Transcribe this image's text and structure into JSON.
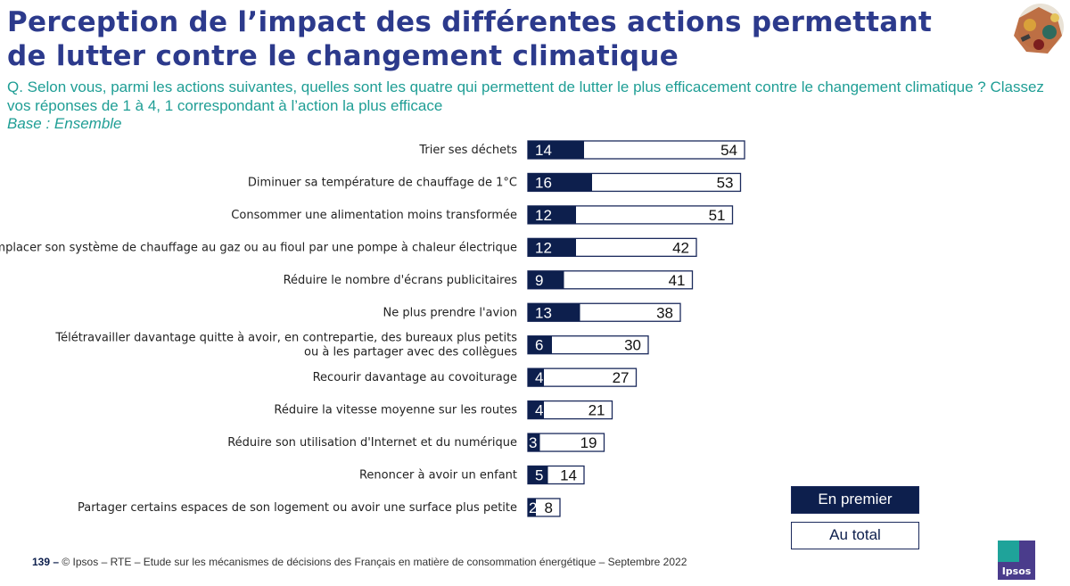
{
  "title": "Perception de l’impact des différentes actions permettant de lutter contre le changement climatique",
  "question": "Q. Selon vous, parmi les actions suivantes, quelles sont les quatre qui permettent de lutter le plus efficacement contre le changement climatique ? Classez vos réponses de 1 à 4, 1 correspondant à l’action la plus efficace",
  "base": "Base : Ensemble",
  "footer": {
    "page": "139 –",
    "text": "© Ipsos – RTE – Etude sur les mécanismes de décisions des Français en matière de consommation énergétique – Septembre 2022"
  },
  "logo_text": "Ipsos",
  "colors": {
    "title": "#2c3a8c",
    "subtitle": "#1f9e95",
    "first": "#0d1f4d",
    "total_fill": "#ffffff",
    "border": "#1b2a5c"
  },
  "chart_data": {
    "type": "bar",
    "orientation": "horizontal",
    "overlay": true,
    "categories": [
      [
        "Trier ses déchets"
      ],
      [
        "Diminuer sa température de chauffage de 1°C"
      ],
      [
        "Consommer une alimentation moins transformée"
      ],
      [
        "Remplacer son système de chauffage au gaz ou au fioul par une pompe à chaleur électrique"
      ],
      [
        "Réduire le nombre d'écrans publicitaires"
      ],
      [
        "Ne plus prendre l'avion"
      ],
      [
        "Télétravailler davantage quitte à avoir, en contrepartie, des bureaux plus petits",
        "ou à les partager avec des collègues"
      ],
      [
        "Recourir davantage au covoiturage"
      ],
      [
        "Réduire la vitesse moyenne sur les routes"
      ],
      [
        "Réduire son utilisation d'Internet et du numérique"
      ],
      [
        "Renoncer à avoir un enfant"
      ],
      [
        "Partager certains espaces de son logement ou avoir une surface plus petite"
      ]
    ],
    "series": [
      {
        "name": "En premier",
        "values": [
          14,
          16,
          12,
          12,
          9,
          13,
          6,
          4,
          4,
          3,
          5,
          2
        ]
      },
      {
        "name": "Au total",
        "values": [
          54,
          53,
          51,
          42,
          41,
          38,
          30,
          27,
          21,
          19,
          14,
          8
        ]
      }
    ],
    "legend_position": "bottom-right",
    "grid": false
  }
}
